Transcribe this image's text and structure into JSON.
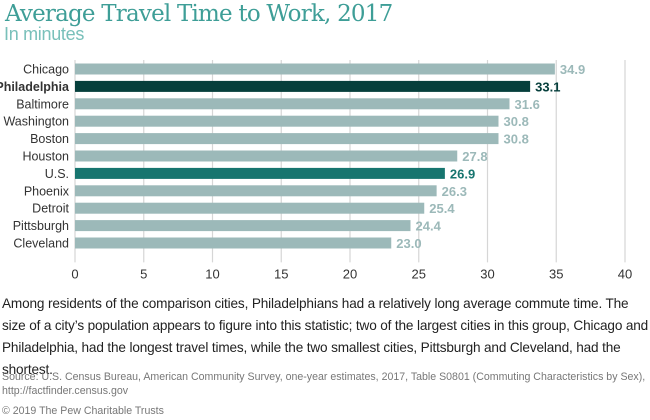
{
  "chart_data": {
    "type": "bar",
    "orientation": "horizontal",
    "title": "Average Travel Time to Work, 2017",
    "subtitle": "In minutes",
    "xlabel": "",
    "ylabel": "",
    "xlim": [
      0,
      40
    ],
    "xticks": [
      0,
      5,
      10,
      15,
      20,
      25,
      30,
      35,
      40
    ],
    "grid": true,
    "categories": [
      "Chicago",
      "Philadelphia",
      "Baltimore",
      "Washington",
      "Boston",
      "Houston",
      "U.S.",
      "Phoenix",
      "Detroit",
      "Pittsburgh",
      "Cleveland"
    ],
    "values": [
      34.9,
      33.1,
      31.6,
      30.8,
      30.8,
      27.8,
      26.9,
      26.3,
      25.4,
      24.4,
      23.0
    ],
    "value_labels": [
      "34.9",
      "33.1",
      "31.6",
      "30.8",
      "30.8",
      "27.8",
      "26.9",
      "26.3",
      "25.4",
      "24.4",
      "23.0"
    ],
    "highlight": {
      "Philadelphia": "dark",
      "U.S.": "teal"
    },
    "colors": {
      "default": "#9cb9b9",
      "dark": "#063f3c",
      "teal": "#17756f",
      "grid": "#d6d6d6"
    }
  },
  "body_text": "Among residents of the comparison cities, Philadelphians had a relatively long average commute time. The size of a city’s population appears to figure into this statistic; two of the largest cities in this group, Chicago and Philadelphia, had the longest travel times, while the two smallest cities, Pittsburgh and Cleveland, had the shortest.",
  "source": "Source: U.S. Census Bureau, American Community Survey, one-year estimates, 2017, Table S0801 (Commuting Characteristics by Sex), http://factfinder.census.gov",
  "copyright": "© 2019 The Pew Charitable Trusts"
}
